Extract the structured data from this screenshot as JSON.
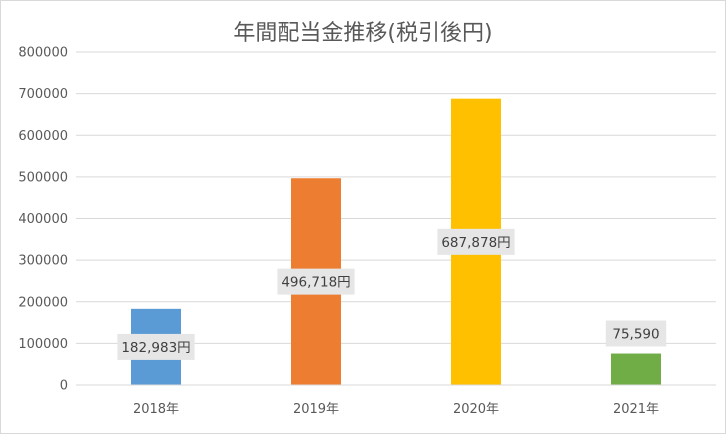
{
  "chart_data": {
    "type": "bar",
    "title": "年間配当金推移(税引後円)",
    "categories": [
      "2018年",
      "2019年",
      "2020年",
      "2021年"
    ],
    "values": [
      182983,
      496718,
      687878,
      75590
    ],
    "data_labels": [
      "182,983円",
      "496,718円",
      "687,878円",
      "75,590"
    ],
    "colors": [
      "#5b9bd5",
      "#ed7d31",
      "#ffc000",
      "#70ad47"
    ],
    "ylim": [
      0,
      800000
    ],
    "yticks": [
      "0",
      "100000",
      "200000",
      "300000",
      "400000",
      "500000",
      "600000",
      "700000",
      "800000"
    ],
    "grid": true,
    "legend": "none",
    "xlabel": "",
    "ylabel": ""
  }
}
